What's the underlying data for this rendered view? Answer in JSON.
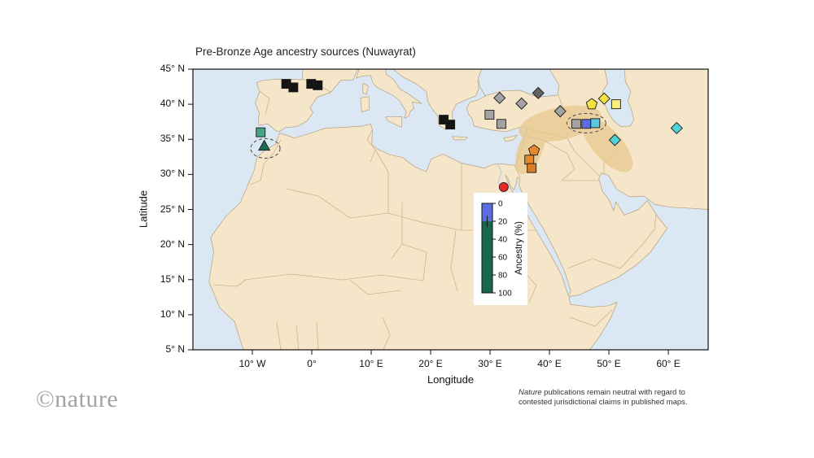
{
  "figure": {
    "title": "Pre-Bronze Age ancestry sources (Nuwayrat)"
  },
  "axes": {
    "x": {
      "label": "Longitude",
      "ticks": [
        {
          "label": "10° W",
          "lon": -10
        },
        {
          "label": "0°",
          "lon": 0
        },
        {
          "label": "10° E",
          "lon": 10
        },
        {
          "label": "20° E",
          "lon": 20
        },
        {
          "label": "30° E",
          "lon": 30
        },
        {
          "label": "40° E",
          "lon": 40
        },
        {
          "label": "50° E",
          "lon": 50
        },
        {
          "label": "60° E",
          "lon": 60
        }
      ]
    },
    "y": {
      "label": "Latitude",
      "ticks": [
        {
          "label": "45° N",
          "lat": 45
        },
        {
          "label": "40° N",
          "lat": 40
        },
        {
          "label": "35° N",
          "lat": 35
        },
        {
          "label": "30° N",
          "lat": 30
        },
        {
          "label": "25° N",
          "lat": 25
        },
        {
          "label": "20° N",
          "lat": 20
        },
        {
          "label": "15° N",
          "lat": 15
        },
        {
          "label": "10° N",
          "lat": 10
        },
        {
          "label": "5° N",
          "lat": 5
        }
      ]
    }
  },
  "legend": {
    "title": "Ancestry (%)",
    "ticks": [
      0,
      20,
      40,
      60,
      80,
      100
    ],
    "segments": [
      {
        "name": "blue segment",
        "color": "#5b6de2",
        "value": 20
      },
      {
        "name": "green segment",
        "color": "#17674e",
        "value": 80
      }
    ],
    "whisker": {
      "at": 20,
      "half": 6
    }
  },
  "chart_data": {
    "type": "bar",
    "title": "Ancestry (%)",
    "orientation": "vertical-stacked",
    "categories": [
      "Nuwayrat ancestry composition"
    ],
    "series": [
      {
        "name": "blue segment",
        "values": [
          20
        ]
      },
      {
        "name": "green segment",
        "values": [
          80
        ]
      }
    ],
    "ylim": [
      0,
      100
    ],
    "axis_inverted": true,
    "legend_position": "center-of-map"
  },
  "map": {
    "colors": {
      "sea": "#dbe8f4",
      "land": "#f5e6ca",
      "coast": "#b3a07e",
      "border": "#cbb48c",
      "highlight": "#e8c88d"
    },
    "markers": [
      {
        "lon": -4.3,
        "lat": 42.9,
        "shape": "square",
        "color": "#141414"
      },
      {
        "lon": -3.1,
        "lat": 42.4,
        "shape": "square",
        "color": "#141414"
      },
      {
        "lon": -0.1,
        "lat": 42.9,
        "shape": "square",
        "color": "#141414"
      },
      {
        "lon": 1.0,
        "lat": 42.7,
        "shape": "square",
        "color": "#141414"
      },
      {
        "lon": 22.2,
        "lat": 37.8,
        "shape": "square",
        "color": "#141414"
      },
      {
        "lon": 23.3,
        "lat": 37.1,
        "shape": "square",
        "color": "#141414"
      },
      {
        "lon": -8.6,
        "lat": 36.0,
        "shape": "square",
        "color": "#46a38b"
      },
      {
        "lon": -8.0,
        "lat": 34.0,
        "shape": "triangle",
        "color": "#1d6b50"
      },
      {
        "lon": 29.9,
        "lat": 38.5,
        "shape": "square",
        "color": "#a3a3a3"
      },
      {
        "lon": 31.9,
        "lat": 37.2,
        "shape": "square",
        "color": "#a3a3a3"
      },
      {
        "lon": 31.6,
        "lat": 40.9,
        "shape": "diamond",
        "color": "#a3a3a3"
      },
      {
        "lon": 35.3,
        "lat": 40.1,
        "shape": "diamond",
        "color": "#a3a3a3"
      },
      {
        "lon": 38.1,
        "lat": 41.6,
        "shape": "diamond",
        "color": "#636363"
      },
      {
        "lon": 41.8,
        "lat": 39.0,
        "shape": "diamond",
        "color": "#a3a3a3"
      },
      {
        "lon": 44.5,
        "lat": 37.2,
        "shape": "square",
        "color": "#a3a3a3"
      },
      {
        "lon": 46.2,
        "lat": 37.2,
        "shape": "square",
        "color": "#5b6de2"
      },
      {
        "lon": 47.7,
        "lat": 37.3,
        "shape": "square",
        "color": "#57c8de"
      },
      {
        "lon": 47.1,
        "lat": 40.0,
        "shape": "pentagon",
        "color": "#f2e243"
      },
      {
        "lon": 49.2,
        "lat": 40.8,
        "shape": "diamond",
        "color": "#f2e243"
      },
      {
        "lon": 51.2,
        "lat": 40.0,
        "shape": "square",
        "color": "#f6ef79"
      },
      {
        "lon": 51.0,
        "lat": 34.9,
        "shape": "diamond",
        "color": "#4fd2dc"
      },
      {
        "lon": 61.4,
        "lat": 36.6,
        "shape": "diamond",
        "color": "#4fd2dc"
      },
      {
        "lon": 37.4,
        "lat": 33.4,
        "shape": "pentagon",
        "color": "#e2892f"
      },
      {
        "lon": 36.6,
        "lat": 32.1,
        "shape": "square",
        "color": "#e2892f"
      },
      {
        "lon": 37.0,
        "lat": 30.9,
        "shape": "square",
        "color": "#d97b28"
      },
      {
        "lon": 32.3,
        "lat": 28.2,
        "shape": "circle",
        "color": "#e32d26"
      }
    ],
    "callouts": [
      {
        "lon": -7.8,
        "lat": 33.7,
        "rx": 18,
        "ry": 12
      },
      {
        "lon": 46.2,
        "lat": 37.3,
        "rx": 24,
        "ry": 12
      }
    ]
  },
  "footer": {
    "disclaimer_lead": "Nature",
    "disclaimer_line1": " publications remain neutral with regard to",
    "disclaimer_line2": "contested jurisdictional claims in published maps.",
    "logo": "©nature"
  }
}
